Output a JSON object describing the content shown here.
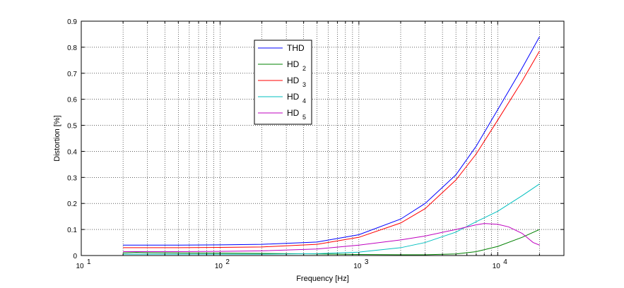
{
  "chart_data": {
    "type": "line",
    "title": "",
    "xlabel": "Frequency [Hz]",
    "ylabel": "Distortion [%]",
    "xscale": "log",
    "xlim": [
      10,
      30000
    ],
    "ylim": [
      0,
      0.9
    ],
    "grid": true,
    "legend_position": "top-center",
    "x_ticks": [
      {
        "base": "10",
        "exp": "1",
        "value": 10
      },
      {
        "base": "10",
        "exp": "2",
        "value": 100
      },
      {
        "base": "10",
        "exp": "3",
        "value": 1000
      },
      {
        "base": "10",
        "exp": "4",
        "value": 10000
      }
    ],
    "y_ticks": [
      {
        "label": "0",
        "value": 0
      },
      {
        "label": "0.1",
        "value": 0.1
      },
      {
        "label": "0.2",
        "value": 0.2
      },
      {
        "label": "0.3",
        "value": 0.3
      },
      {
        "label": "0.4",
        "value": 0.4
      },
      {
        "label": "0.5",
        "value": 0.5
      },
      {
        "label": "0.6",
        "value": 0.6
      },
      {
        "label": "0.7",
        "value": 0.7
      },
      {
        "label": "0.8",
        "value": 0.8
      },
      {
        "label": "0.9",
        "value": 0.9
      }
    ],
    "series": [
      {
        "name": "THD",
        "legend_main": "THD",
        "legend_sub": "",
        "color": "#0000ff",
        "x": [
          20,
          50,
          100,
          200,
          500,
          1000,
          2000,
          3000,
          5000,
          7000,
          10000,
          15000,
          20000
        ],
        "y": [
          0.04,
          0.04,
          0.041,
          0.043,
          0.052,
          0.08,
          0.14,
          0.2,
          0.31,
          0.42,
          0.56,
          0.72,
          0.84
        ]
      },
      {
        "name": "HD2",
        "legend_main": "HD",
        "legend_sub": "2",
        "color": "#008000",
        "x": [
          20,
          25,
          30,
          50,
          100,
          200,
          500,
          1000,
          2000,
          3000,
          5000,
          7000,
          10000,
          15000,
          20000
        ],
        "y": [
          0.01,
          0.012,
          0.011,
          0.01,
          0.009,
          0.008,
          0.006,
          0.004,
          0.003,
          0.003,
          0.006,
          0.015,
          0.035,
          0.07,
          0.1
        ]
      },
      {
        "name": "HD3",
        "legend_main": "HD",
        "legend_sub": "3",
        "color": "#ff0000",
        "x": [
          20,
          50,
          100,
          200,
          500,
          1000,
          2000,
          3000,
          5000,
          7000,
          10000,
          15000,
          20000
        ],
        "y": [
          0.03,
          0.03,
          0.031,
          0.033,
          0.043,
          0.07,
          0.125,
          0.18,
          0.29,
          0.39,
          0.52,
          0.67,
          0.785
        ]
      },
      {
        "name": "HD4",
        "legend_main": "HD",
        "legend_sub": "4",
        "color": "#00bfbf",
        "x": [
          20,
          50,
          100,
          200,
          500,
          1000,
          2000,
          3000,
          5000,
          7000,
          10000,
          15000,
          20000
        ],
        "y": [
          0.005,
          0.005,
          0.005,
          0.005,
          0.007,
          0.013,
          0.03,
          0.05,
          0.09,
          0.13,
          0.17,
          0.23,
          0.275
        ]
      },
      {
        "name": "HD5",
        "legend_main": "HD",
        "legend_sub": "5",
        "color": "#bf00bf",
        "x": [
          20,
          50,
          100,
          200,
          500,
          1000,
          2000,
          3000,
          5000,
          7000,
          8000,
          10000,
          12000,
          15000,
          18000,
          20000
        ],
        "y": [
          0.015,
          0.015,
          0.016,
          0.018,
          0.025,
          0.04,
          0.06,
          0.075,
          0.1,
          0.118,
          0.123,
          0.12,
          0.11,
          0.085,
          0.05,
          0.04
        ]
      }
    ]
  }
}
